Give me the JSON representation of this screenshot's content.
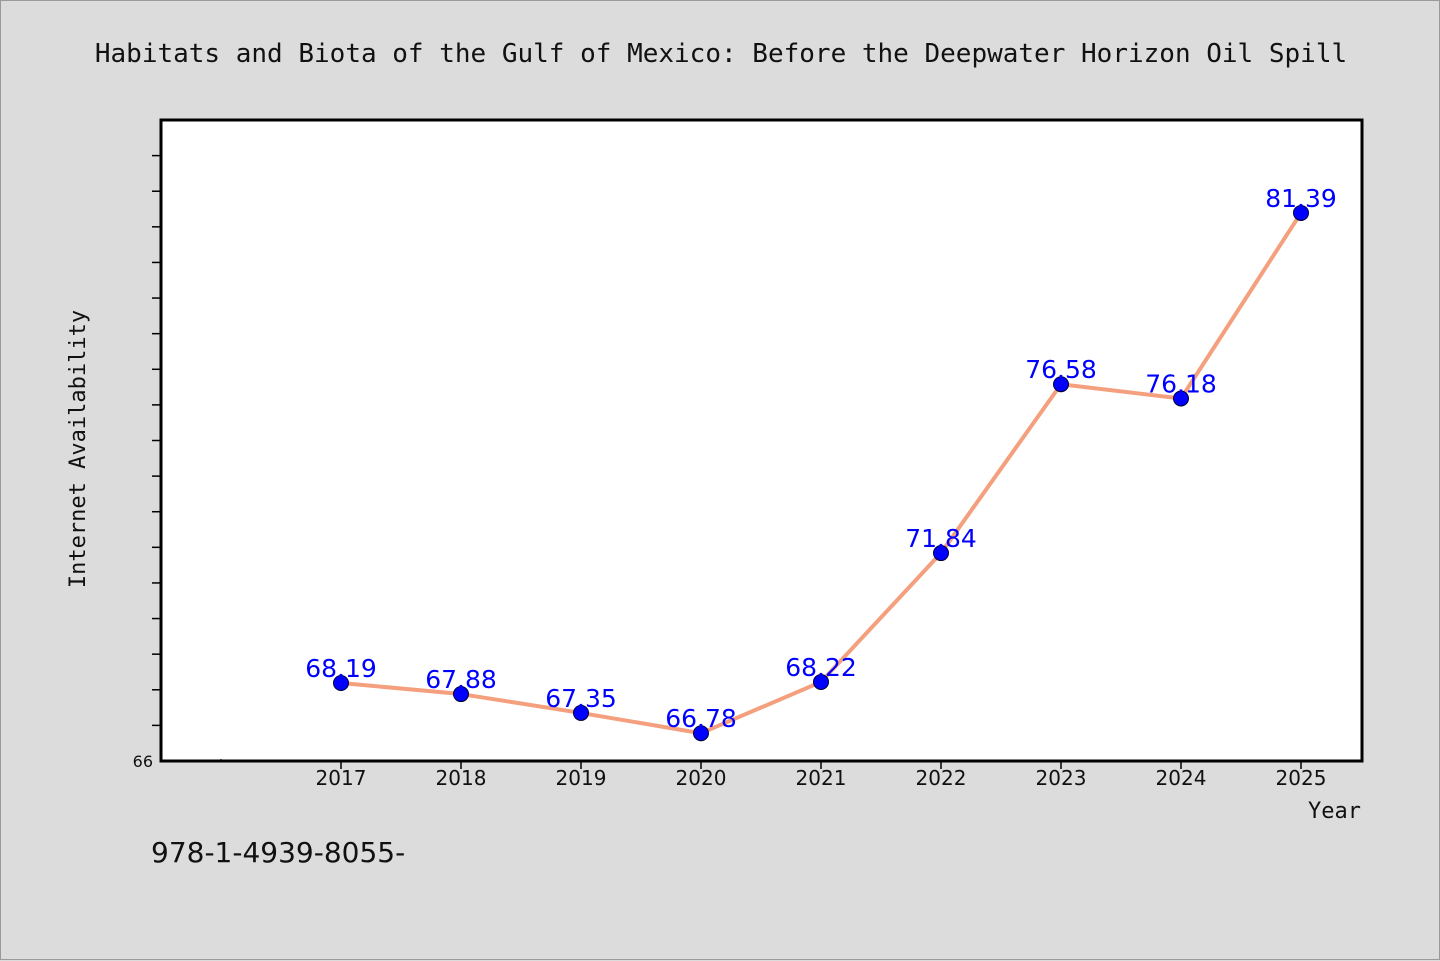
{
  "footer": {
    "code": "978-1-4939-8055-"
  },
  "colors": {
    "line": "#f4a07e",
    "marker": "#0000ff",
    "label": "#0000ff",
    "background": "#dcdcdc",
    "plot_bg": "#ffffff"
  },
  "chart_data": {
    "type": "line",
    "title": "Habitats and Biota of the Gulf of Mexico: Before the Deepwater Horizon Oil Spill",
    "xlabel": "Year",
    "ylabel": "Internet Availability",
    "categories": [
      "2017",
      "2018",
      "2019",
      "2020",
      "2021",
      "2022",
      "2023",
      "2024",
      "2025"
    ],
    "values": [
      68.19,
      67.88,
      67.35,
      66.78,
      68.22,
      71.84,
      76.58,
      76.18,
      81.39
    ],
    "data_labels": [
      "68.19",
      "67.88",
      "67.35",
      "66.78",
      "68.22",
      "71.84",
      "76.58",
      "76.18",
      "81.39"
    ],
    "ylim": [
      66,
      84
    ],
    "y_tick_labels": [
      "66"
    ],
    "grid": false,
    "legend": "none"
  }
}
